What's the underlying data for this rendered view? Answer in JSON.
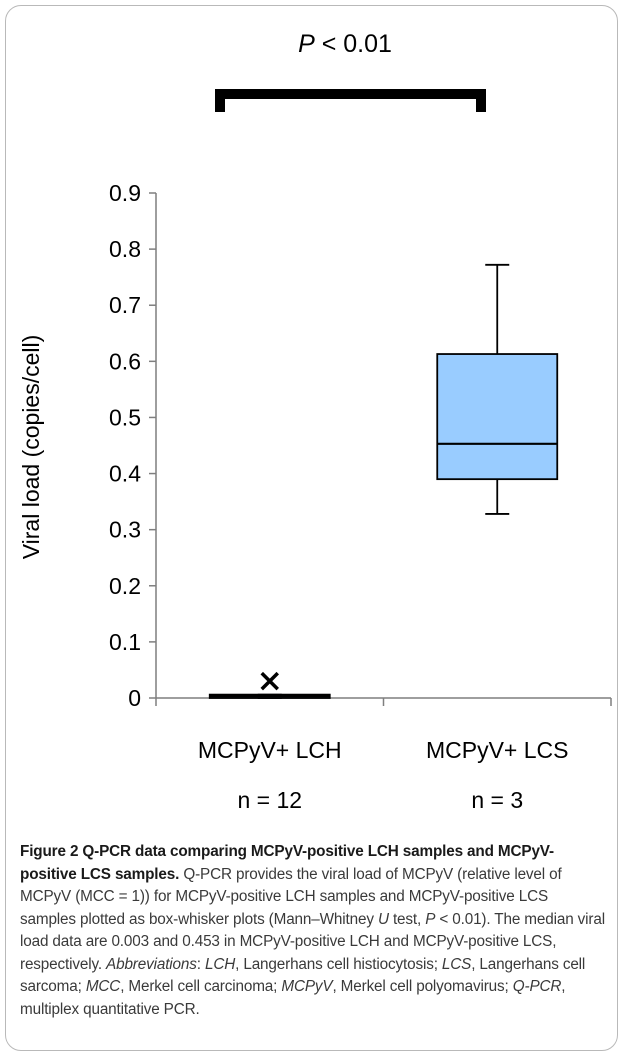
{
  "chart_data": {
    "type": "box",
    "ylabel": "Viral load (copies/cell)",
    "ylim": [
      0,
      0.9
    ],
    "yticks": [
      "0",
      "0.1",
      "0.2",
      "0.3",
      "0.4",
      "0.5",
      "0.6",
      "0.7",
      "0.8",
      "0.9"
    ],
    "significance": {
      "label_italic": "P",
      "label_rest": " < 0.01"
    },
    "groups": [
      {
        "name": "MCPyV+ LCH",
        "n_label": "n = 12",
        "min": 0.0,
        "q1": 0.0,
        "median": 0.003,
        "q3": 0.006,
        "max": 0.006,
        "outliers": [
          0.03
        ]
      },
      {
        "name": "MCPyV+ LCS",
        "n_label": "n = 3",
        "min": 0.328,
        "q1": 0.39,
        "median": 0.453,
        "q3": 0.613,
        "max": 0.772,
        "outliers": []
      }
    ],
    "colors": {
      "box_fill": "#99ccff",
      "line": "#000000",
      "axis": "#7f7f7f"
    }
  },
  "caption": {
    "title": "Figure 2 Q-PCR data comparing MCPyV-positive LCH samples and MCPyV-positive LCS samples.",
    "body_a": " Q-PCR provides the viral load of MCPyV (relative level of MCPyV (MCC = 1)) for MCPyV-positive LCH samples and MCPyV-positive LCS samples plotted as box-whisker plots (Mann–Whitney ",
    "u": "U",
    "body_b": " test, ",
    "p": "P",
    "body_c": " < 0.01). The median viral load data are 0.003 and 0.453 in MCPyV-positive LCH and MCPyV-positive LCS, respectively. ",
    "abbrev_label": "Abbreviations",
    "abbrev_sep": ": ",
    "a1": "LCH",
    "d1": ", Langerhans cell histiocytosis; ",
    "a2": "LCS",
    "d2": ", Langerhans cell sarcoma; ",
    "a3": "MCC",
    "d3": ", Merkel cell carcinoma; ",
    "a4": "MCPyV",
    "d4": ", Merkel cell polyomavirus; ",
    "a5": "Q-PCR",
    "d5": ", multiplex quantitative PCR."
  }
}
